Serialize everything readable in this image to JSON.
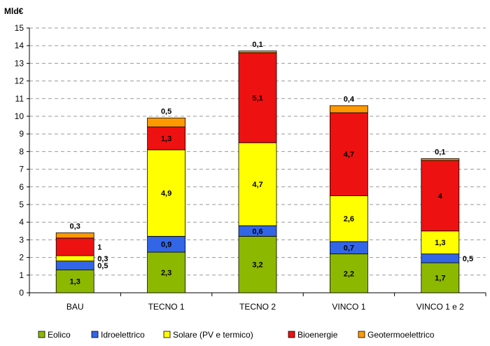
{
  "chart_data": {
    "type": "bar",
    "stacked": true,
    "unit_label": "Mld€",
    "categories": [
      "BAU",
      "TECNO 1",
      "TECNO 2",
      "VINCO 1",
      "VINCO 1 e 2"
    ],
    "ylim": [
      0,
      15
    ],
    "yticks": [
      "0",
      "1",
      "2",
      "3",
      "4",
      "5",
      "6",
      "7",
      "8",
      "9",
      "10",
      "11",
      "12",
      "13",
      "14",
      "15"
    ],
    "grid": "horizontal-dashed",
    "legend_position": "bottom",
    "series": [
      {
        "name": "Eolico",
        "color": "#8DB800",
        "values": [
          1.3,
          2.3,
          3.2,
          2.2,
          1.7
        ],
        "labels": [
          "1,3",
          "2,3",
          "3,2",
          "2,2",
          "1,7"
        ]
      },
      {
        "name": "Idroelettrico",
        "color": "#3366E6",
        "values": [
          0.5,
          0.9,
          0.6,
          0.7,
          0.5
        ],
        "labels": [
          "0,5",
          "0,9",
          "0,6",
          "0,7",
          "0,5"
        ]
      },
      {
        "name": "Solare (PV e termico)",
        "color": "#FFFF00",
        "values": [
          0.3,
          4.9,
          4.7,
          2.6,
          1.3
        ],
        "labels": [
          "0,3",
          "4,9",
          "4,7",
          "2,6",
          "1,3"
        ]
      },
      {
        "name": "Bioenergie",
        "color": "#EE1111",
        "values": [
          1.0,
          1.3,
          5.1,
          4.7,
          4.0
        ],
        "labels": [
          "1",
          "1,3",
          "5,1",
          "4,7",
          "4"
        ]
      },
      {
        "name": "Geotermoelettrico",
        "color": "#FF9900",
        "values": [
          0.3,
          0.5,
          0.1,
          0.4,
          0.1
        ],
        "labels": [
          "0,3",
          "0,5",
          "0,1",
          "0,4",
          "0,1"
        ]
      }
    ]
  }
}
